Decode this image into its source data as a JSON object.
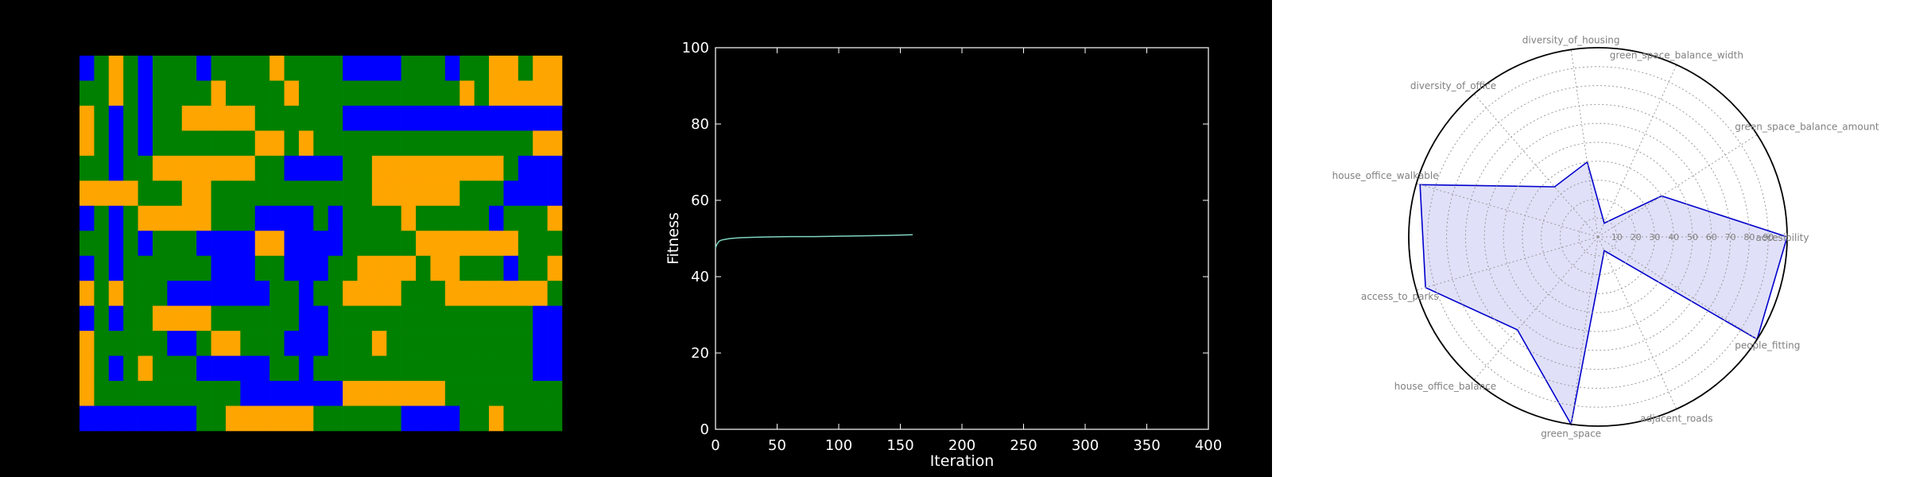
{
  "chart_data": [
    {
      "type": "heatmap",
      "colors": {
        "blue": "#0000ff",
        "orange": "#ffa500",
        "green": "#008000",
        "gray": "#808080"
      },
      "grid": [
        "BGOGBGGGBGGGGOGGGGBBBBGGGBGGOOGOO",
        "GGOGBGGGGOGGGGOGGGGGGGGGGGOGOOOOO",
        "OGBGBGGOOOOOGGGGGGBBBBBBBBBBBBBBB",
        "OGBGBGGGGGGGOOGOGGGGGGGGGGGGGGGOO",
        "GGBGGOOOOOOOGGBBBBGGOOOOOOOOOGBBB",
        "OOOOGGGOOGGGGGGGGGGGOOOOOOGGGBBBB",
        "BGBGOOOOOGGGBBBBGBGGGGOGGGGGBGGGO",
        "GGBGBGGGBBBBOOBBBBGGGGGOOOOOOOGGG",
        "BGBGGGGGGBBBGGBBBGGOOOOGOOGGGBGGO",
        "OGOGGGBBBBBBBGGBGGOOOOGGGOOOOOOOG",
        "BGBGGOOOOGGGGGGBBGGGGGGGGGGGGGGBB",
        "OGGGGGBBGOOGGGBBBGGGOGGGGGGGGGGBB",
        "OGBGOGGGBBBBBGGBGGGGGGGGGGGGGGGBB",
        "OGGGGGGGGGGBBBBBBBOOOOOOOGGGGGGGG",
        "BBBBBBBBGGOOOOOOGGGGGGBBBBGGOGGGG"
      ]
    },
    {
      "type": "line",
      "xlabel": "Iteration",
      "ylabel": "Fitness",
      "xlim": [
        0,
        400
      ],
      "ylim": [
        0,
        100
      ],
      "xticks": [
        0,
        50,
        100,
        150,
        200,
        250,
        300,
        350,
        400
      ],
      "yticks": [
        0,
        20,
        40,
        60,
        80,
        100
      ],
      "line_color": "#7fd4c1",
      "x": [
        0,
        1,
        2,
        3,
        5,
        8,
        12,
        20,
        30,
        40,
        60,
        80,
        100,
        120,
        140,
        160
      ],
      "y": [
        47.5,
        48.4,
        48.9,
        49.3,
        49.6,
        49.8,
        50.0,
        50.2,
        50.3,
        50.4,
        50.5,
        50.5,
        50.6,
        50.7,
        50.8,
        51.0
      ]
    },
    {
      "type": "radar",
      "axes": [
        "accesibility",
        "green_space_balance_amount",
        "green_space_balance_width",
        "diversity_of_housing",
        "diversity_of_office",
        "house_office_walkable",
        "access_to_parks",
        "house_office_balance",
        "green_space",
        "adjacent_roads",
        "people_fitting"
      ],
      "rticks": [
        10,
        20,
        30,
        40,
        50,
        60,
        70,
        80,
        90
      ],
      "rmax": 100,
      "values": [
        100,
        40,
        8,
        40,
        35,
        98,
        95,
        65,
        100,
        8,
        100
      ],
      "line_color": "#0000cc",
      "fill_color": "#d6d6f7",
      "grid": true
    }
  ]
}
